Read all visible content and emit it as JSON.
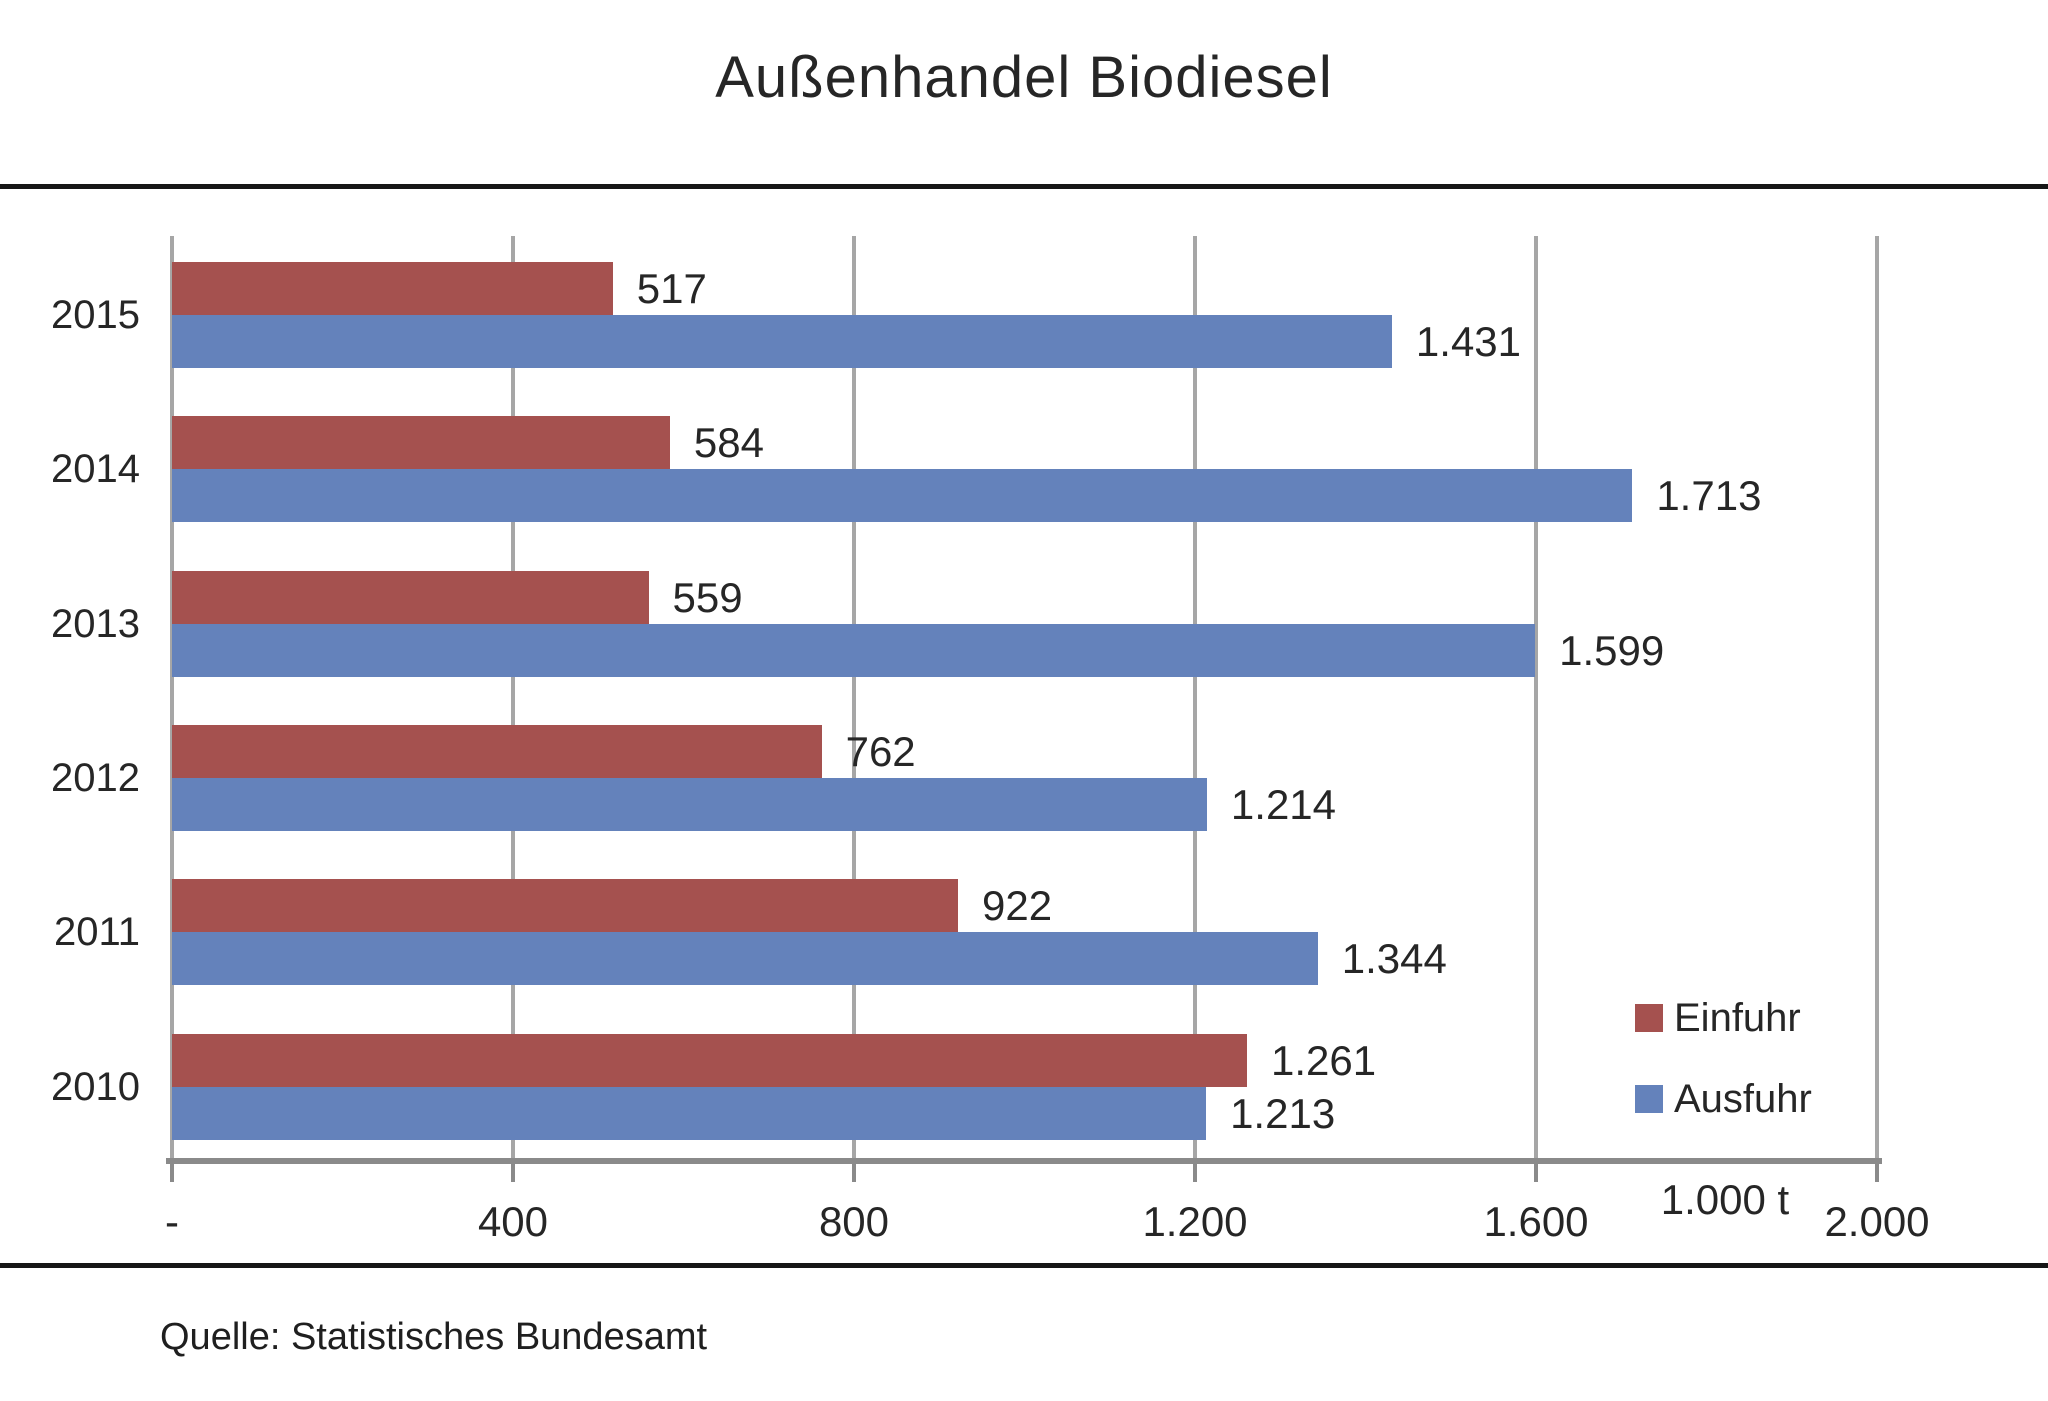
{
  "title": "Außenhandel Biodiesel",
  "source": "Quelle: Statistisches Bundesamt",
  "axis_unit": "1.000 t",
  "colors": {
    "einfuhr": "#a5514f",
    "ausfuhr": "#6482bb",
    "gridline": "#a6a6a6",
    "axis": "#8a8a8a",
    "divider": "#161616",
    "text": "#262626"
  },
  "chart_data": {
    "type": "bar",
    "orientation": "horizontal",
    "title": "Außenhandel Biodiesel",
    "xlabel": "1.000 t",
    "ylabel": "",
    "xlim": [
      0,
      2000
    ],
    "grid": true,
    "legend_position": "inside-bottom-right",
    "categories": [
      "2015",
      "2014",
      "2013",
      "2012",
      "2011",
      "2010"
    ],
    "series": [
      {
        "name": "Einfuhr",
        "color": "#a5514f",
        "values": [
          517,
          584,
          559,
          762,
          922,
          1261
        ],
        "labels": [
          "517",
          "584",
          "559",
          "762",
          "922",
          "1.261"
        ]
      },
      {
        "name": "Ausfuhr",
        "color": "#6482bb",
        "values": [
          1431,
          1713,
          1599,
          1214,
          1344,
          1213
        ],
        "labels": [
          "1.431",
          "1.713",
          "1.599",
          "1.214",
          "1.344",
          "1.213"
        ]
      }
    ],
    "x_ticks": [
      {
        "value": 0,
        "label": "-"
      },
      {
        "value": 400,
        "label": "400"
      },
      {
        "value": 800,
        "label": "800"
      },
      {
        "value": 1200,
        "label": "1.200"
      },
      {
        "value": 1600,
        "label": "1.600"
      },
      {
        "value": 2000,
        "label": "2.000"
      }
    ]
  }
}
